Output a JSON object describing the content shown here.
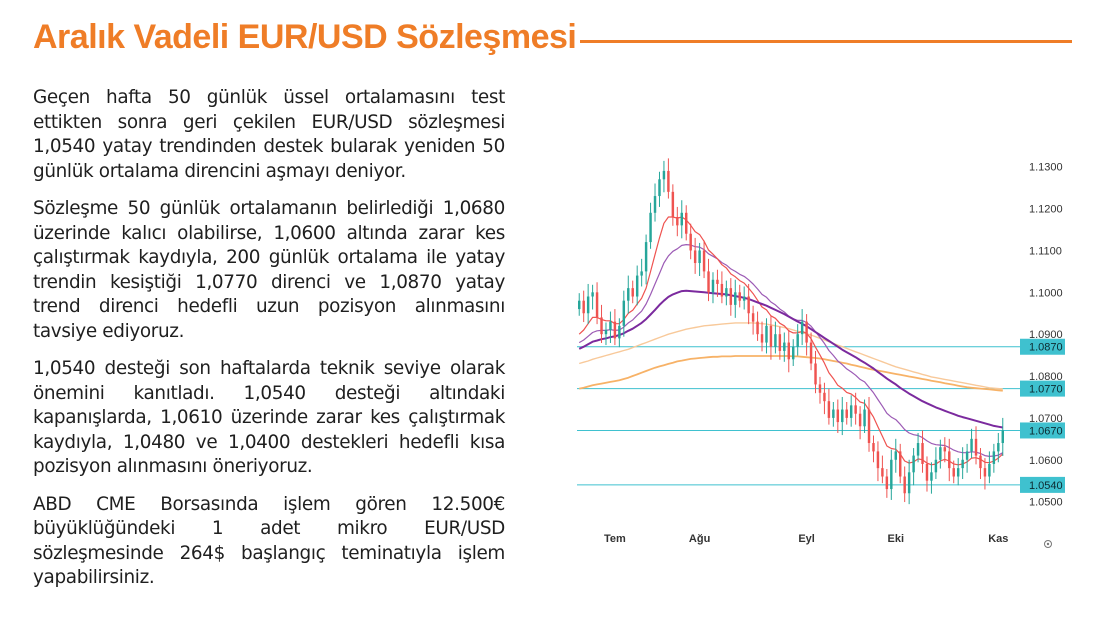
{
  "title": "Aralık Vadeli EUR/USD Sözleşmesi",
  "paragraphs": [
    "Geçen hafta 50 günlük üssel ortalamasını test ettikten sonra geri çekilen EUR/USD sözleşmesi 1,0540 yatay trendinden destek bularak yeniden 50 günlük ortalama direncini aşmayı deniyor.",
    "Sözleşme 50 günlük ortalamanın belirlediği 1,0680 üzerinde kalıcı olabilirse, 1,0600 altında zarar kes çalıştırmak kaydıyla, 200 günlük ortalama ile yatay trendin kesiştiği 1,0770 direnci ve 1,0870 yatay trend direnci hedefli uzun pozisyon alınmasını tavsiye ediyoruz.",
    "1,0540 desteği son haftalarda teknik seviye olarak önemini kanıtladı. 1,0540 desteği altındaki kapanışlarda, 1,0610 üzerinde zarar kes çalıştırmak kaydıyla, 1,0480 ve 1,0400 destekleri hedefli kısa pozisyon alınmasını öneriyoruz.",
    "ABD CME Borsasında işlem gören 12.500€ büyüklüğündeki 1 adet mikro EUR/USD sözleşmesinde  264$ başlangıç teminatıyla işlem yapabilirsiniz."
  ],
  "chart_data": {
    "type": "candlestick",
    "ylim": [
      1.048,
      1.134
    ],
    "y_ticks": [
      "1.1300",
      "1.1200",
      "1.1100",
      "1.1000",
      "1.0900",
      "1.0800",
      "1.0700",
      "1.0600",
      "1.0500"
    ],
    "y_tick_values": [
      1.13,
      1.12,
      1.11,
      1.1,
      1.09,
      1.08,
      1.07,
      1.06,
      1.05
    ],
    "x_ticks": [
      "Tem",
      "Ağu",
      "Eyl",
      "Eki",
      "Kas"
    ],
    "x_tick_index": [
      8,
      27,
      51,
      71,
      94
    ],
    "n_bars": 96,
    "colors": {
      "up": "#26a69a",
      "down": "#ef5350",
      "ema_fast": "#ef5350",
      "ema_mid": "#9c5bb5",
      "ema_50": "#7b2a9e",
      "ma_200": "#f7b267",
      "ma_100": "#f8c99a",
      "level": "#3fc1cf",
      "level_label_bg": "#3fc1cf",
      "axis_text": "#333333"
    },
    "levels": [
      {
        "value": 1.087,
        "label": "1.0870"
      },
      {
        "value": 1.077,
        "label": "1.0770"
      },
      {
        "value": 1.067,
        "label": "1.0670"
      },
      {
        "value": 1.054,
        "label": "1.0540"
      }
    ],
    "close": [
      1.098,
      1.095,
      1.099,
      1.1,
      1.094,
      1.09,
      1.091,
      1.093,
      1.089,
      1.092,
      1.098,
      1.101,
      1.099,
      1.104,
      1.105,
      1.112,
      1.119,
      1.123,
      1.127,
      1.129,
      1.124,
      1.118,
      1.116,
      1.119,
      1.114,
      1.11,
      1.107,
      1.11,
      1.105,
      1.1,
      1.103,
      1.102,
      1.099,
      1.101,
      1.097,
      1.1,
      1.098,
      1.099,
      1.095,
      1.093,
      1.09,
      1.088,
      1.092,
      1.087,
      1.09,
      1.086,
      1.088,
      1.084,
      1.087,
      1.09,
      1.093,
      1.088,
      1.083,
      1.078,
      1.076,
      1.074,
      1.07,
      1.072,
      1.069,
      1.072,
      1.07,
      1.073,
      1.071,
      1.068,
      1.072,
      1.064,
      1.062,
      1.058,
      1.056,
      1.053,
      1.06,
      1.062,
      1.056,
      1.052,
      1.057,
      1.061,
      1.064,
      1.059,
      1.055,
      1.057,
      1.06,
      1.063,
      1.062,
      1.058,
      1.056,
      1.058,
      1.06,
      1.062,
      1.065,
      1.061,
      1.058,
      1.056,
      1.059,
      1.062,
      1.064,
      1.067
    ],
    "ema_fast": [
      1.09,
      1.091,
      1.0925,
      1.094,
      1.094,
      1.0935,
      1.0932,
      1.0932,
      1.0925,
      1.0925,
      1.0935,
      1.095,
      1.0957,
      1.0972,
      1.0986,
      1.101,
      1.105,
      1.109,
      1.113,
      1.1165,
      1.118,
      1.118,
      1.1177,
      1.118,
      1.1173,
      1.116,
      1.1145,
      1.1138,
      1.1122,
      1.1101,
      1.1091,
      1.108,
      1.1066,
      1.1058,
      1.1044,
      1.1037,
      1.1028,
      1.1022,
      1.101,
      1.0997,
      1.0981,
      1.0965,
      1.0958,
      1.0944,
      1.0938,
      1.0926,
      1.092,
      1.0908,
      1.0903,
      1.0903,
      1.0907,
      1.0902,
      1.0889,
      1.0869,
      1.085,
      1.0831,
      1.0808,
      1.0794,
      1.0778,
      1.0771,
      1.0761,
      1.0757,
      1.0749,
      1.0738,
      1.0735,
      1.0719,
      1.0702,
      1.0679,
      1.0656,
      1.0633,
      1.0627,
      1.0625,
      1.0614,
      1.0597,
      1.0592,
      1.0595,
      1.0602,
      1.06,
      1.0592,
      1.0588,
      1.059,
      1.0597,
      1.0601,
      1.0597,
      1.059,
      1.0588,
      1.059,
      1.0595,
      1.0604,
      1.0605,
      1.0601,
      1.0594,
      1.0593,
      1.0597,
      1.0604,
      1.0614
    ],
    "ema_mid": [
      1.088,
      1.0886,
      1.0895,
      1.0904,
      1.0908,
      1.0909,
      1.0909,
      1.0911,
      1.0909,
      1.091,
      1.0917,
      1.0927,
      1.0934,
      1.0945,
      1.0955,
      1.0972,
      1.0995,
      1.102,
      1.1045,
      1.107,
      1.1087,
      1.1098,
      1.1104,
      1.1112,
      1.1114,
      1.1113,
      1.1109,
      1.1108,
      1.1102,
      1.1092,
      1.1086,
      1.108,
      1.1071,
      1.1065,
      1.1056,
      1.105,
      1.1043,
      1.1038,
      1.103,
      1.102,
      1.1008,
      1.0995,
      1.0988,
      1.0977,
      1.097,
      1.096,
      1.0953,
      1.0943,
      1.0937,
      1.0933,
      1.0933,
      1.0928,
      1.0919,
      1.0906,
      1.0892,
      1.0878,
      1.0861,
      1.0849,
      1.0836,
      1.0827,
      1.0817,
      1.081,
      1.0802,
      1.0792,
      1.0786,
      1.0773,
      1.076,
      1.0744,
      1.0728,
      1.0711,
      1.0702,
      1.0696,
      1.0685,
      1.0672,
      1.0664,
      1.066,
      1.0658,
      1.0653,
      1.0645,
      1.0639,
      1.0636,
      1.0635,
      1.0634,
      1.0629,
      1.0623,
      1.0619,
      1.0617,
      1.0617,
      1.0619,
      1.0618,
      1.0615,
      1.061,
      1.0608,
      1.0609,
      1.0611,
      1.0617
    ],
    "ema_50": [
      1.0865,
      1.087,
      1.0876,
      1.0882,
      1.0885,
      1.0888,
      1.089,
      1.0893,
      1.0895,
      1.0898,
      1.0902,
      1.0908,
      1.0913,
      1.092,
      1.0927,
      1.0936,
      1.0947,
      1.0958,
      1.097,
      1.098,
      1.0989,
      1.0995,
      1.0999,
      1.1003,
      1.1004,
      1.1003,
      1.1002,
      1.1001,
      1.1,
      1.0999,
      1.0998,
      1.0997,
      1.0996,
      1.0995,
      1.0993,
      1.0991,
      1.0989,
      1.0987,
      1.0984,
      1.098,
      1.0976,
      1.0972,
      1.0968,
      1.0963,
      1.0958,
      1.0953,
      1.0948,
      1.0942,
      1.0936,
      1.093,
      1.0925,
      1.0919,
      1.0912,
      1.0905,
      1.0898,
      1.0891,
      1.0884,
      1.0877,
      1.087,
      1.0863,
      1.0857,
      1.0851,
      1.0845,
      1.0838,
      1.0832,
      1.0825,
      1.0818,
      1.081,
      1.0802,
      1.0794,
      1.0787,
      1.078,
      1.0772,
      1.0765,
      1.0758,
      1.0752,
      1.0746,
      1.074,
      1.0735,
      1.073,
      1.0725,
      1.0721,
      1.0717,
      1.0713,
      1.0709,
      1.0705,
      1.0702,
      1.0699,
      1.0696,
      1.0693,
      1.069,
      1.0687,
      1.0684,
      1.0681,
      1.0679,
      1.0677
    ],
    "ma_200": [
      1.077,
      1.0772,
      1.0775,
      1.0778,
      1.078,
      1.0782,
      1.0784,
      1.0786,
      1.0788,
      1.079,
      1.0793,
      1.0796,
      1.08,
      1.0804,
      1.0808,
      1.0812,
      1.0816,
      1.082,
      1.0823,
      1.0826,
      1.0829,
      1.0832,
      1.0835,
      1.0837,
      1.0839,
      1.0841,
      1.0842,
      1.0843,
      1.0844,
      1.0845,
      1.0846,
      1.0846,
      1.0847,
      1.0847,
      1.0847,
      1.0848,
      1.0848,
      1.0848,
      1.0848,
      1.0848,
      1.0848,
      1.0848,
      1.0848,
      1.0848,
      1.0848,
      1.0848,
      1.0848,
      1.0848,
      1.0847,
      1.0847,
      1.0846,
      1.0845,
      1.0844,
      1.0843,
      1.0842,
      1.084,
      1.0838,
      1.0836,
      1.0834,
      1.0832,
      1.083,
      1.0827,
      1.0825,
      1.0822,
      1.082,
      1.0817,
      1.0815,
      1.0813,
      1.0811,
      1.0809,
      1.0807,
      1.0805,
      1.0803,
      1.0801,
      1.0799,
      1.0797,
      1.0795,
      1.0793,
      1.0791,
      1.0789,
      1.0787,
      1.0785,
      1.0783,
      1.0781,
      1.0779,
      1.0777,
      1.0775,
      1.0773,
      1.0772,
      1.0771,
      1.077,
      1.0769,
      1.0768,
      1.0767,
      1.0766,
      1.0765
    ],
    "ma_100": [
      1.083,
      1.0833,
      1.0836,
      1.084,
      1.0843,
      1.0846,
      1.0849,
      1.0852,
      1.0855,
      1.0858,
      1.0861,
      1.0864,
      1.0868,
      1.0872,
      1.0876,
      1.088,
      1.0884,
      1.0888,
      1.0892,
      1.0896,
      1.09,
      1.0903,
      1.0906,
      1.0909,
      1.0912,
      1.0914,
      1.0916,
      1.0918,
      1.092,
      1.0921,
      1.0922,
      1.0923,
      1.0924,
      1.0925,
      1.0926,
      1.0927,
      1.0927,
      1.0927,
      1.0927,
      1.0927,
      1.0926,
      1.0925,
      1.0924,
      1.0922,
      1.092,
      1.0918,
      1.0916,
      1.0913,
      1.091,
      1.0907,
      1.0904,
      1.0901,
      1.0898,
      1.0894,
      1.089,
      1.0886,
      1.0882,
      1.0878,
      1.0874,
      1.087,
      1.0866,
      1.0862,
      1.0858,
      1.0854,
      1.085,
      1.0846,
      1.0842,
      1.0838,
      1.0834,
      1.083,
      1.0826,
      1.0822,
      1.0819,
      1.0816,
      1.0813,
      1.081,
      1.0807,
      1.0804,
      1.0801,
      1.0798,
      1.0796,
      1.0794,
      1.0792,
      1.079,
      1.0788,
      1.0786,
      1.0784,
      1.0782,
      1.078,
      1.0778,
      1.0776,
      1.0774,
      1.0772,
      1.0771,
      1.077,
      1.0769
    ]
  }
}
